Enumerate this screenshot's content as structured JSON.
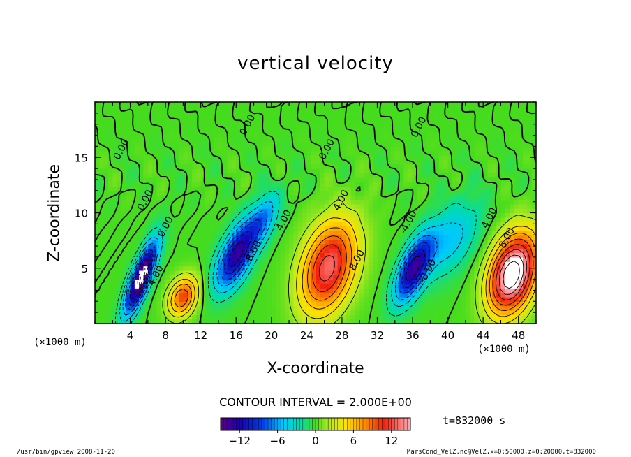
{
  "chart_data": {
    "type": "heatmap",
    "title": "vertical velocity",
    "xlabel": "X-coordinate",
    "ylabel": "Z-coordinate",
    "x_unit_left": "(×1000 m)",
    "x_unit_right": "(×1000 m)",
    "xlim": [
      0,
      50
    ],
    "ylim": [
      0,
      20
    ],
    "x_ticks": [
      4,
      8,
      12,
      16,
      20,
      24,
      28,
      32,
      36,
      40,
      44,
      48
    ],
    "y_ticks": [
      5,
      10,
      15
    ],
    "contour_interval_text": "CONTOUR INTERVAL = 2.000E+00",
    "contour_labels": [
      {
        "text": "0.00",
        "x": 3.3,
        "y": 15.6
      },
      {
        "text": "0.00",
        "x": 6.0,
        "y": 11.0
      },
      {
        "text": "0.00",
        "x": 8.3,
        "y": 8.6
      },
      {
        "text": "4.00",
        "x": 7.2,
        "y": 4.2
      },
      {
        "text": "0.00",
        "x": 17.6,
        "y": 17.8
      },
      {
        "text": "-8.00",
        "x": 18.2,
        "y": 6.3
      },
      {
        "text": "4.00",
        "x": 21.7,
        "y": 9.2
      },
      {
        "text": "0.00",
        "x": 26.6,
        "y": 15.6
      },
      {
        "text": "4.00",
        "x": 28.2,
        "y": 11.0
      },
      {
        "text": "8.00",
        "x": 30.0,
        "y": 5.6
      },
      {
        "text": "-4.00",
        "x": 35.8,
        "y": 9.0
      },
      {
        "text": "-8.00",
        "x": 38.0,
        "y": 4.6
      },
      {
        "text": "0.00",
        "x": 37.0,
        "y": 17.6
      },
      {
        "text": "4.00",
        "x": 45.0,
        "y": 9.4
      },
      {
        "text": "8.00",
        "x": 47.0,
        "y": 7.6
      }
    ],
    "cells": [
      {
        "name": "updraft-1",
        "x": 5.0,
        "y": 4.0,
        "sx": 1.1,
        "sy": 3.2,
        "amp": -17
      },
      {
        "name": "downdraft-1",
        "x": 9.8,
        "y": 2.3,
        "sx": 1.6,
        "sy": 1.8,
        "amp": 10
      },
      {
        "name": "updraft-2",
        "x": 15.8,
        "y": 6.0,
        "sx": 1.8,
        "sy": 3.0,
        "amp": -13
      },
      {
        "name": "updraft-2b",
        "x": 18.8,
        "y": 9.2,
        "sx": 1.6,
        "sy": 2.4,
        "amp": -6
      },
      {
        "name": "downdraft-2",
        "x": 26.3,
        "y": 5.0,
        "sx": 3.0,
        "sy": 4.2,
        "amp": 13
      },
      {
        "name": "updraft-3",
        "x": 35.9,
        "y": 4.8,
        "sx": 1.6,
        "sy": 3.0,
        "amp": -13
      },
      {
        "name": "updraft-3b",
        "x": 40.2,
        "y": 7.5,
        "sx": 2.8,
        "sy": 3.4,
        "amp": -5
      },
      {
        "name": "downdraft-3",
        "x": 47.2,
        "y": 4.4,
        "sx": 2.6,
        "sy": 3.6,
        "amp": 18
      }
    ],
    "colorbar": {
      "min": -15,
      "max": 15,
      "tick_values": [
        -12,
        -6,
        0,
        6,
        12
      ],
      "tick_labels": [
        "−12",
        "−6",
        "0",
        "6",
        "12"
      ]
    },
    "time_text": "t=832000 s",
    "footer_left": "/usr/bin/gpview  2008-11-20",
    "footer_right": "MarsCond_VelZ.nc@VelZ,x=0:50000,z=0:20000,t=832000"
  }
}
